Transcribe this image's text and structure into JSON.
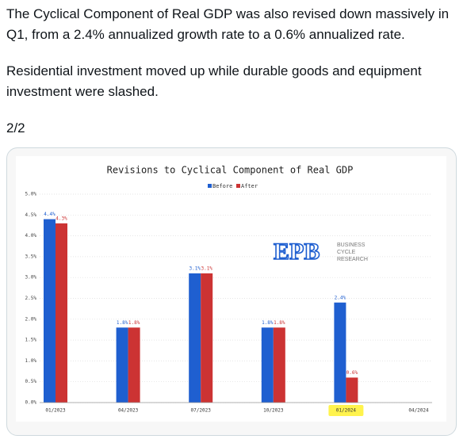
{
  "post": {
    "paragraphs": [
      "The Cyclical Component of Real GDP was also revised down massively in Q1, from a 2.4% annualized growth rate to a 0.6% annualized rate.",
      "Residential investment moved up while durable goods and equipment investment were slashed.",
      "2/2"
    ]
  },
  "chart_data": {
    "type": "bar",
    "title": "Revisions to Cyclical Component of Real GDP",
    "categories": [
      "01/2023",
      "04/2023",
      "07/2023",
      "10/2023",
      "01/2024",
      "04/2024"
    ],
    "series": [
      {
        "name": "Before",
        "color": "#1f5fd0",
        "values": [
          4.4,
          1.8,
          3.1,
          1.8,
          2.4,
          null
        ],
        "value_labels": [
          "4.4%",
          "1.8%",
          "3.1%",
          "1.8%",
          "2.4%",
          null
        ]
      },
      {
        "name": "After",
        "color": "#cc3333",
        "values": [
          4.3,
          1.8,
          3.1,
          1.8,
          0.6,
          null
        ],
        "value_labels": [
          "4.3%",
          "1.8%",
          "3.1%",
          "1.8%",
          "0.6%",
          null
        ]
      }
    ],
    "ylim": [
      0,
      5
    ],
    "yticks": [
      {
        "value": 0,
        "label": "0.0%"
      },
      {
        "value": 0.5,
        "label": "0.5%"
      },
      {
        "value": 1,
        "label": "1.0%"
      },
      {
        "value": 1.5,
        "label": "1.5%"
      },
      {
        "value": 2,
        "label": "2.0%"
      },
      {
        "value": 2.5,
        "label": "2.5%"
      },
      {
        "value": 3,
        "label": "3.0%"
      },
      {
        "value": 3.5,
        "label": "3.5%"
      },
      {
        "value": 4,
        "label": "4.0%"
      },
      {
        "value": 4.5,
        "label": "4.5%"
      },
      {
        "value": 5,
        "label": "5.0%"
      }
    ],
    "grid": true,
    "legend": "top",
    "highlight_index": 4,
    "logo": {
      "mark": "EPB",
      "lines": [
        "BUSINESS",
        "CYCLE",
        "RESEARCH"
      ]
    }
  }
}
